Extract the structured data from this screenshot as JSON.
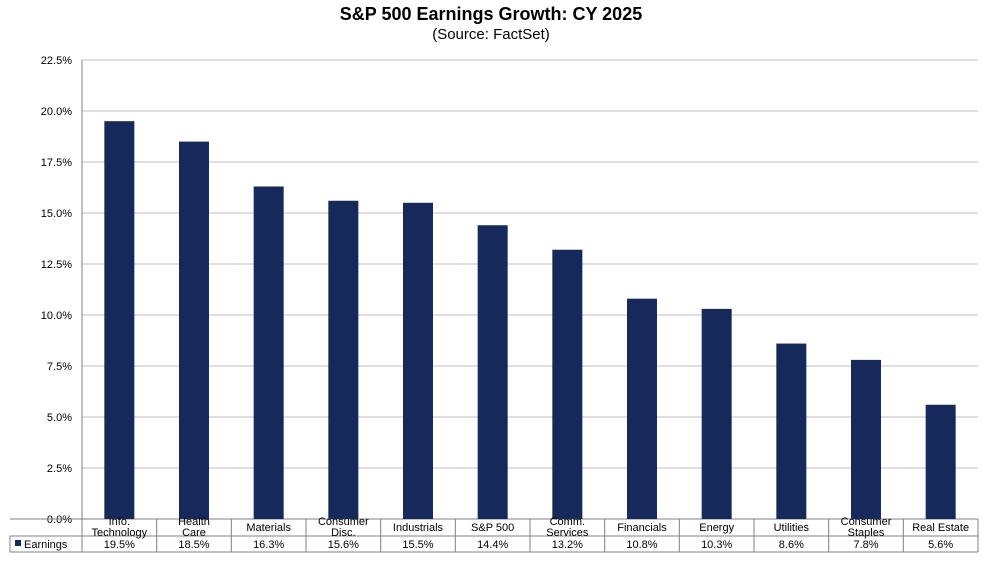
{
  "chart_data": {
    "type": "bar",
    "title": "S&P 500 Earnings Growth: CY 2025",
    "subtitle": "(Source: FactSet)",
    "categories": [
      [
        "Info.",
        "Technology"
      ],
      [
        "Health",
        "Care"
      ],
      [
        "Materials"
      ],
      [
        "Consumer",
        "Disc."
      ],
      [
        "Industrials"
      ],
      [
        "S&P 500"
      ],
      [
        "Comm.",
        "Services"
      ],
      [
        "Financials"
      ],
      [
        "Energy"
      ],
      [
        "Utilities"
      ],
      [
        "Consumer",
        "Staples"
      ],
      [
        "Real Estate"
      ]
    ],
    "series": [
      {
        "name": "Earnings",
        "values": [
          19.5,
          18.5,
          16.3,
          15.6,
          15.5,
          14.4,
          13.2,
          10.8,
          10.3,
          8.6,
          7.8,
          5.6
        ],
        "value_labels": [
          "19.5%",
          "18.5%",
          "16.3%",
          "15.6%",
          "15.5%",
          "14.4%",
          "13.2%",
          "10.8%",
          "10.3%",
          "8.6%",
          "7.8%",
          "5.6%"
        ],
        "color": "#17295a"
      }
    ],
    "ylim": [
      0,
      22.5
    ],
    "yticks": [
      "0.0%",
      "2.5%",
      "5.0%",
      "7.5%",
      "10.0%",
      "12.5%",
      "15.0%",
      "17.5%",
      "20.0%",
      "22.5%"
    ],
    "grid": true,
    "legend_placement": "data-table-left",
    "xlabel": "",
    "ylabel": ""
  }
}
